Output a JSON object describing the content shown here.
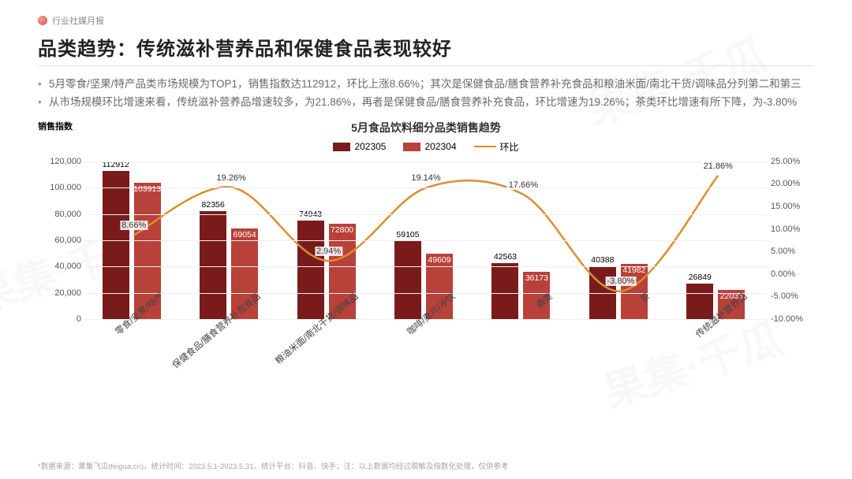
{
  "header_tag": "行业社媒月报",
  "title": "品类趋势：传统滋补营养品和保健食品表现较好",
  "bullets": [
    "5月零食/坚果/特产品类市场规模为TOP1，销售指数达112912，环比上涨8.66%；其次是保健食品/膳食营养补充食品和粮油米面/南北干货/调味品分列第二和第三",
    "从市场规模环比增速来看，传统滋补营养品增速较多，为21.86%，再者是保健食品/膳食营养补充食品，环比增速为19.26%；茶类环比增速有所下降，为-3.80%"
  ],
  "chart": {
    "title": "5月食品饮料细分品类销售趋势",
    "legend": {
      "series_a": "202305",
      "series_b": "202304",
      "line": "环比"
    },
    "y_left_label": "销售指数",
    "y_left": {
      "min": 0,
      "max": 120000,
      "step": 20000
    },
    "y_right": {
      "min": -10,
      "max": 25,
      "step": 5
    },
    "categories": [
      "零食/坚果/特产",
      "保健食品/膳食营养补充食品",
      "粮油米面/南北干货/调味品",
      "咖啡/麦片/冲饮",
      "酒类",
      "茶",
      "传统滋补营养品"
    ],
    "series_a_values": [
      112912,
      82356,
      74943,
      59105,
      42563,
      40388,
      26849
    ],
    "series_b_values": [
      103913,
      69054,
      72800,
      49609,
      36173,
      41982,
      22033
    ],
    "series_b_show_inside": [
      true,
      true,
      true,
      true,
      true,
      true,
      true
    ],
    "pct_values": [
      8.66,
      19.26,
      2.94,
      19.14,
      17.66,
      -3.8,
      21.86
    ],
    "pct_labels": [
      "8.66%",
      "19.26%",
      "2.94%",
      "19.14%",
      "17.66%",
      "-3.80%",
      "21.86%"
    ],
    "colors": {
      "series_a": "#7a1b1b",
      "series_b": "#b8413a",
      "line": "#d98f2e",
      "grid": "#eeeeee",
      "text": "#333333"
    }
  },
  "footnote": "*数据来源：果集飞瓜(feigua.cn)，统计时间：2023.5.1-2023.5.31，统计平台：抖音、快手；注：以上数据均经过脱敏及指数化处理，仅供参考",
  "watermark": "果集·千瓜"
}
